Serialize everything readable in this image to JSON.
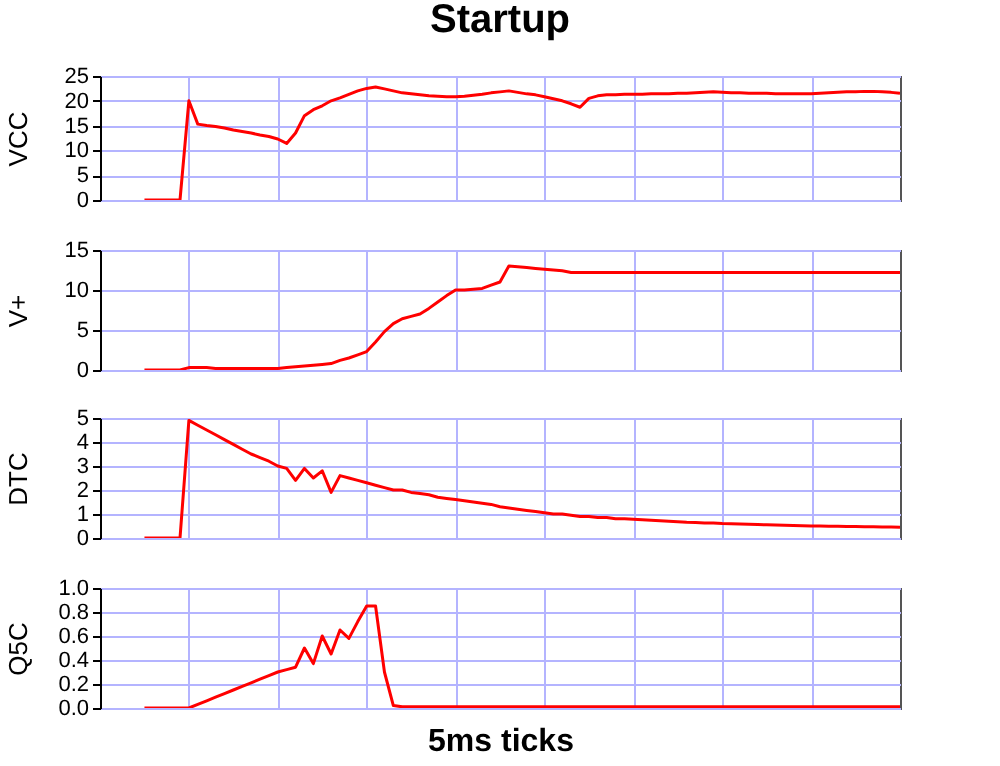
{
  "chart_data": [
    {
      "type": "line",
      "title": "Startup",
      "ylabel": "VCC",
      "color": "#ff0000",
      "grid": true,
      "tick_labels": "y",
      "ylim": [
        0,
        25
      ],
      "yticks": [
        0,
        5,
        10,
        15,
        20,
        25
      ],
      "categories": [
        null,
        null,
        null,
        null,
        null,
        null,
        null,
        null,
        null,
        null,
        null,
        null,
        null,
        null,
        null,
        null,
        null,
        null,
        null,
        null,
        null,
        null,
        null,
        null,
        null,
        null,
        null,
        null,
        null,
        null,
        null,
        null,
        null,
        null,
        null,
        null,
        null,
        null,
        null,
        null,
        null,
        null,
        null,
        null,
        null,
        null,
        null,
        null,
        null,
        null,
        null,
        null,
        null,
        null,
        null,
        null,
        null,
        null,
        null,
        null,
        null,
        null,
        null,
        null,
        null,
        null,
        null,
        null,
        null,
        null,
        null,
        null,
        null,
        null,
        null,
        null,
        null,
        null,
        null,
        null,
        null,
        null,
        null,
        null,
        null,
        null,
        null,
        null,
        null,
        null,
        null
      ],
      "values": [
        null,
        null,
        null,
        null,
        null,
        0,
        0,
        0,
        0,
        0,
        20,
        15.3,
        15.0,
        14.8,
        14.5,
        14.1,
        13.8,
        13.5,
        13.1,
        12.8,
        12.3,
        11.4,
        13.5,
        17.0,
        18.2,
        19.0,
        20.0,
        20.6,
        21.3,
        22.0,
        22.5,
        22.8,
        22.4,
        22.0,
        21.6,
        21.4,
        21.2,
        21.0,
        20.9,
        20.8,
        20.8,
        20.9,
        21.1,
        21.3,
        21.6,
        21.8,
        22.0,
        21.7,
        21.4,
        21.2,
        20.8,
        20.4,
        20.0,
        19.4,
        18.7,
        20.5,
        21.0,
        21.2,
        21.2,
        21.3,
        21.3,
        21.3,
        21.4,
        21.4,
        21.4,
        21.5,
        21.5,
        21.6,
        21.7,
        21.8,
        21.7,
        21.6,
        21.6,
        21.5,
        21.5,
        21.5,
        21.4,
        21.4,
        21.4,
        21.4,
        21.4,
        21.5,
        21.6,
        21.7,
        21.8,
        21.8,
        21.9,
        21.9,
        21.8,
        21.7,
        21.5
      ]
    },
    {
      "type": "line",
      "ylabel": "V+",
      "color": "#ff0000",
      "grid": true,
      "tick_labels": "y",
      "ylim": [
        0,
        15
      ],
      "yticks": [
        0,
        5,
        10,
        15
      ],
      "categories": [
        null,
        null,
        null,
        null,
        null,
        null,
        null,
        null,
        null,
        null,
        null,
        null,
        null,
        null,
        null,
        null,
        null,
        null,
        null,
        null,
        null,
        null,
        null,
        null,
        null,
        null,
        null,
        null,
        null,
        null,
        null,
        null,
        null,
        null,
        null,
        null,
        null,
        null,
        null,
        null,
        null,
        null,
        null,
        null,
        null,
        null,
        null,
        null,
        null,
        null,
        null,
        null,
        null,
        null,
        null,
        null,
        null,
        null,
        null,
        null,
        null,
        null,
        null,
        null,
        null,
        null,
        null,
        null,
        null,
        null,
        null,
        null,
        null,
        null,
        null,
        null,
        null,
        null,
        null,
        null,
        null,
        null,
        null,
        null,
        null,
        null,
        null,
        null,
        null,
        null,
        null
      ],
      "values": [
        null,
        null,
        null,
        null,
        null,
        0,
        0,
        0,
        0,
        0,
        0.3,
        0.3,
        0.3,
        0.2,
        0.2,
        0.2,
        0.2,
        0.2,
        0.2,
        0.2,
        0.2,
        0.3,
        0.4,
        0.5,
        0.6,
        0.7,
        0.8,
        1.2,
        1.5,
        1.9,
        2.3,
        3.5,
        4.8,
        5.8,
        6.4,
        6.7,
        7.0,
        7.7,
        8.5,
        9.3,
        10.0,
        10.0,
        10.1,
        10.2,
        10.6,
        11.0,
        13.0,
        12.9,
        12.8,
        12.7,
        12.6,
        12.5,
        12.4,
        12.2,
        12.2,
        12.2,
        12.2,
        12.2,
        12.2,
        12.2,
        12.2,
        12.2,
        12.2,
        12.2,
        12.2,
        12.2,
        12.2,
        12.2,
        12.2,
        12.2,
        12.2,
        12.2,
        12.2,
        12.2,
        12.2,
        12.2,
        12.2,
        12.2,
        12.2,
        12.2,
        12.2,
        12.2,
        12.2,
        12.2,
        12.2,
        12.2,
        12.2,
        12.2,
        12.2,
        12.2,
        12.2
      ]
    },
    {
      "type": "line",
      "ylabel": "DTC",
      "color": "#ff0000",
      "grid": true,
      "tick_labels": "y",
      "ylim": [
        0,
        5
      ],
      "yticks": [
        0,
        1,
        2,
        3,
        4,
        5
      ],
      "categories": [
        null,
        null,
        null,
        null,
        null,
        null,
        null,
        null,
        null,
        null,
        null,
        null,
        null,
        null,
        null,
        null,
        null,
        null,
        null,
        null,
        null,
        null,
        null,
        null,
        null,
        null,
        null,
        null,
        null,
        null,
        null,
        null,
        null,
        null,
        null,
        null,
        null,
        null,
        null,
        null,
        null,
        null,
        null,
        null,
        null,
        null,
        null,
        null,
        null,
        null,
        null,
        null,
        null,
        null,
        null,
        null,
        null,
        null,
        null,
        null,
        null,
        null,
        null,
        null,
        null,
        null,
        null,
        null,
        null,
        null,
        null,
        null,
        null,
        null,
        null,
        null,
        null,
        null,
        null,
        null,
        null,
        null,
        null,
        null,
        null,
        null,
        null,
        null,
        null,
        null,
        null
      ],
      "values": [
        null,
        null,
        null,
        null,
        null,
        0,
        0,
        0,
        0,
        0,
        4.9,
        4.7,
        4.5,
        4.3,
        4.1,
        3.9,
        3.7,
        3.5,
        3.35,
        3.2,
        3.0,
        2.9,
        2.4,
        2.9,
        2.5,
        2.8,
        1.9,
        2.6,
        2.5,
        2.4,
        2.3,
        2.2,
        2.1,
        2.0,
        2.0,
        1.9,
        1.85,
        1.8,
        1.7,
        1.65,
        1.6,
        1.55,
        1.5,
        1.45,
        1.4,
        1.3,
        1.25,
        1.2,
        1.15,
        1.1,
        1.05,
        1.0,
        1.0,
        0.95,
        0.9,
        0.9,
        0.85,
        0.85,
        0.8,
        0.8,
        0.78,
        0.76,
        0.74,
        0.72,
        0.7,
        0.68,
        0.66,
        0.65,
        0.63,
        0.62,
        0.6,
        0.59,
        0.58,
        0.57,
        0.56,
        0.55,
        0.54,
        0.53,
        0.52,
        0.51,
        0.5,
        0.5,
        0.49,
        0.49,
        0.48,
        0.48,
        0.47,
        0.47,
        0.46,
        0.46,
        0.45
      ]
    },
    {
      "type": "line",
      "ylabel": "Q5C",
      "xlabel": "5ms ticks",
      "color": "#ff0000",
      "grid": true,
      "tick_labels": "y",
      "ylim": [
        0,
        1
      ],
      "yticks": [
        {
          "value": 0,
          "label": "0.0"
        },
        {
          "value": 0.2,
          "label": "0.2"
        },
        {
          "value": 0.4,
          "label": "0.4"
        },
        {
          "value": 0.6,
          "label": "0.6"
        },
        {
          "value": 0.8,
          "label": "0.8"
        },
        {
          "value": 1,
          "label": "1.0"
        }
      ],
      "categories": [
        null,
        null,
        null,
        null,
        null,
        null,
        null,
        null,
        null,
        null,
        null,
        null,
        null,
        null,
        null,
        null,
        null,
        null,
        null,
        null,
        null,
        null,
        null,
        null,
        null,
        null,
        null,
        null,
        null,
        null,
        null,
        null,
        null,
        null,
        null,
        null,
        null,
        null,
        null,
        null,
        null,
        null,
        null,
        null,
        null,
        null,
        null,
        null,
        null,
        null,
        null,
        null,
        null,
        null,
        null,
        null,
        null,
        null,
        null,
        null,
        null,
        null,
        null,
        null,
        null,
        null,
        null,
        null,
        null,
        null,
        null,
        null,
        null,
        null,
        null,
        null,
        null,
        null,
        null,
        null,
        null,
        null,
        null,
        null,
        null,
        null,
        null,
        null,
        null,
        null,
        null
      ],
      "values": [
        null,
        null,
        null,
        null,
        null,
        0,
        0,
        0,
        0,
        0,
        0,
        0.03,
        0.06,
        0.09,
        0.12,
        0.15,
        0.18,
        0.21,
        0.24,
        0.27,
        0.3,
        0.32,
        0.34,
        0.5,
        0.37,
        0.6,
        0.45,
        0.65,
        0.58,
        0.72,
        0.85,
        0.85,
        0.3,
        0.02,
        0.01,
        0.01,
        0.01,
        0.01,
        0.01,
        0.01,
        0.01,
        0.01,
        0.01,
        0.01,
        0.01,
        0.01,
        0.01,
        0.01,
        0.01,
        0.01,
        0.01,
        0.01,
        0.01,
        0.01,
        0.01,
        0.01,
        0.01,
        0.01,
        0.01,
        0.01,
        0.01,
        0.01,
        0.01,
        0.01,
        0.01,
        0.01,
        0.01,
        0.01,
        0.01,
        0.01,
        0.01,
        0.01,
        0.01,
        0.01,
        0.01,
        0.01,
        0.01,
        0.01,
        0.01,
        0.01,
        0.01,
        0.01,
        0.01,
        0.01,
        0.01,
        0.01,
        0.01,
        0.01,
        0.01,
        0.01,
        0.01
      ]
    }
  ]
}
